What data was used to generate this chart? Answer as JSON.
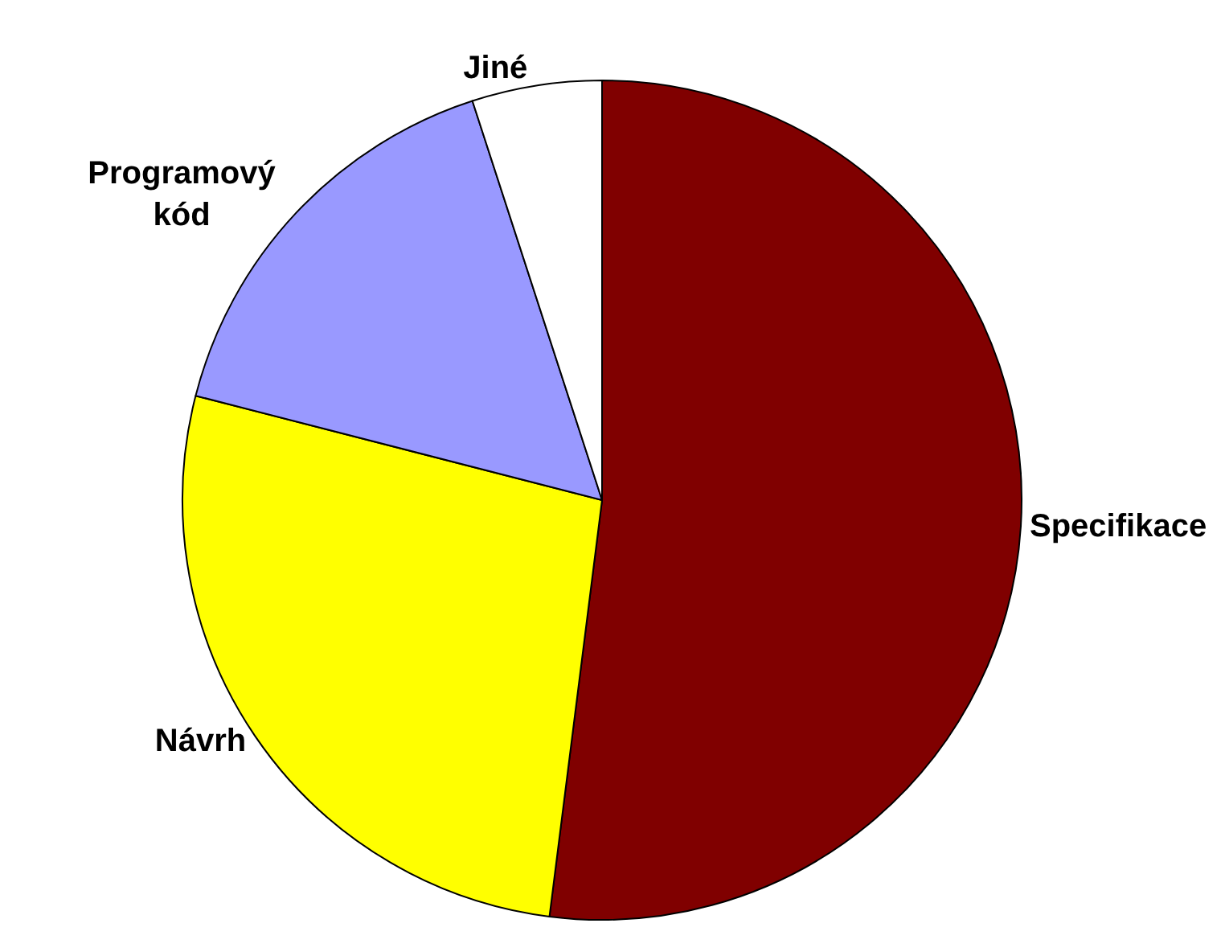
{
  "chart_data": {
    "type": "pie",
    "categories": [
      "Specifikace",
      "Návrh",
      "Programový\nkód",
      "Jiné"
    ],
    "values": [
      52,
      27,
      16,
      5
    ],
    "colors": [
      "#800000",
      "#ffff00",
      "#9999ff",
      "#ffffff"
    ],
    "legend": false
  }
}
